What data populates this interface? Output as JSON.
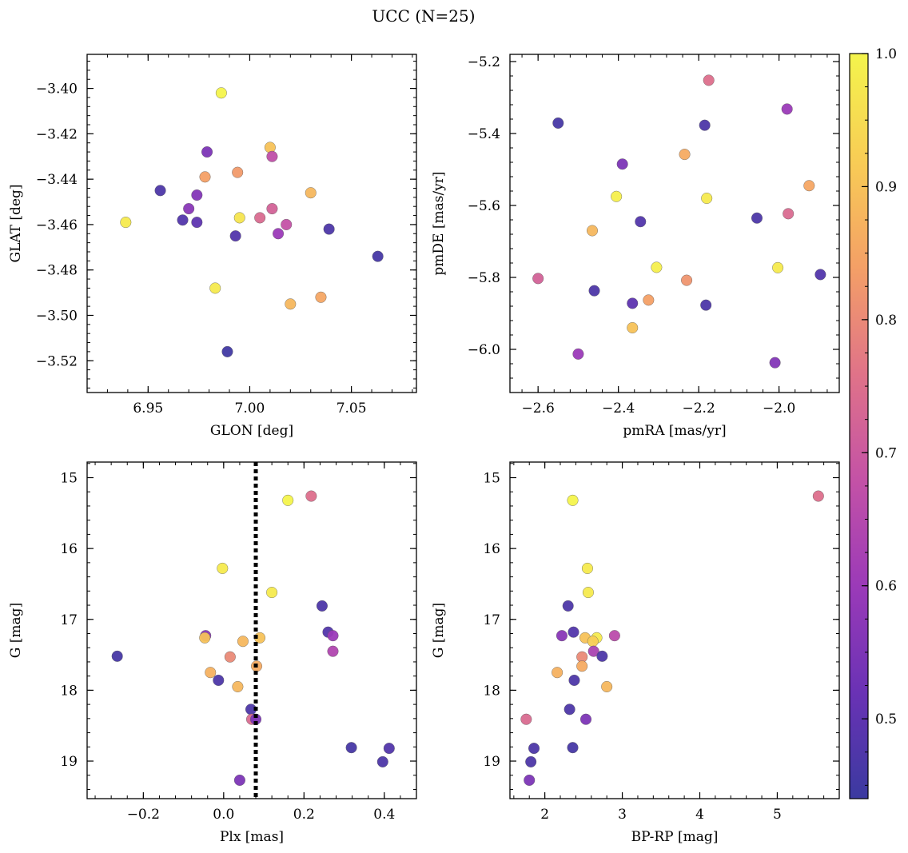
{
  "figure": {
    "suptitle": "UCC (N=25)"
  },
  "colorbar": {
    "range": [
      0.44,
      1.0
    ],
    "ticks": [
      0.5,
      0.6,
      0.7,
      0.8,
      0.9,
      1.0
    ],
    "tick_labels": [
      "0.5",
      "0.6",
      "0.7",
      "0.8",
      "0.9",
      "1.0"
    ],
    "colormap": "plasma",
    "stops": [
      "#3b3aa0",
      "#6a32b5",
      "#9b3ab8",
      "#c452a6",
      "#e07388",
      "#f4a066",
      "#f8cd55",
      "#f4f44c"
    ]
  },
  "chart_data": [
    {
      "type": "scatter",
      "xlabel": "GLON [deg]",
      "ylabel": "GLAT [deg]",
      "xlim": [
        6.92,
        7.082
      ],
      "ylim": [
        -3.534,
        -3.385
      ],
      "y_inverted": false,
      "xticks": [
        6.95,
        7.0,
        7.05
      ],
      "xtick_labels": [
        "6.95",
        "7.00",
        "7.05"
      ],
      "yticks": [
        -3.4,
        -3.42,
        -3.44,
        -3.46,
        -3.48,
        -3.5,
        -3.52
      ],
      "ytick_labels": [
        "−3.40",
        "−3.42",
        "−3.44",
        "−3.46",
        "−3.48",
        "−3.50",
        "−3.52"
      ],
      "vline": null,
      "points": [
        {
          "x": 6.986,
          "y": -3.402,
          "c": 1.0
        },
        {
          "x": 6.979,
          "y": -3.428,
          "c": 0.55
        },
        {
          "x": 7.01,
          "y": -3.426,
          "c": 0.9
        },
        {
          "x": 7.011,
          "y": -3.43,
          "c": 0.67
        },
        {
          "x": 6.956,
          "y": -3.445,
          "c": 0.47
        },
        {
          "x": 6.978,
          "y": -3.439,
          "c": 0.84
        },
        {
          "x": 6.994,
          "y": -3.437,
          "c": 0.83
        },
        {
          "x": 6.974,
          "y": -3.447,
          "c": 0.56
        },
        {
          "x": 6.97,
          "y": -3.453,
          "c": 0.57
        },
        {
          "x": 6.967,
          "y": -3.458,
          "c": 0.48
        },
        {
          "x": 6.974,
          "y": -3.459,
          "c": 0.5
        },
        {
          "x": 6.939,
          "y": -3.459,
          "c": 0.98
        },
        {
          "x": 6.995,
          "y": -3.457,
          "c": 0.97
        },
        {
          "x": 7.005,
          "y": -3.457,
          "c": 0.74
        },
        {
          "x": 7.011,
          "y": -3.453,
          "c": 0.72
        },
        {
          "x": 7.03,
          "y": -3.446,
          "c": 0.88
        },
        {
          "x": 7.018,
          "y": -3.46,
          "c": 0.68
        },
        {
          "x": 6.993,
          "y": -3.465,
          "c": 0.48
        },
        {
          "x": 7.014,
          "y": -3.464,
          "c": 0.6
        },
        {
          "x": 7.039,
          "y": -3.462,
          "c": 0.47
        },
        {
          "x": 7.063,
          "y": -3.474,
          "c": 0.46
        },
        {
          "x": 6.983,
          "y": -3.488,
          "c": 0.98
        },
        {
          "x": 7.02,
          "y": -3.495,
          "c": 0.88
        },
        {
          "x": 7.035,
          "y": -3.492,
          "c": 0.85
        },
        {
          "x": 6.989,
          "y": -3.516,
          "c": 0.45
        }
      ]
    },
    {
      "type": "scatter",
      "xlabel": "pmRA [mas/yr]",
      "ylabel": "pmDE [mas/yr]",
      "xlim": [
        -2.67,
        -1.85
      ],
      "ylim": [
        -6.12,
        -5.18
      ],
      "y_inverted": false,
      "xticks": [
        -2.6,
        -2.4,
        -2.2,
        -2.0
      ],
      "xtick_labels": [
        "−2.6",
        "−2.4",
        "−2.2",
        "−2.0"
      ],
      "yticks": [
        -5.2,
        -5.4,
        -5.6,
        -5.8,
        -6.0
      ],
      "ytick_labels": [
        "−5.2",
        "−5.4",
        "−5.6",
        "−5.8",
        "−6.0"
      ],
      "vline": null,
      "points": [
        {
          "x": -2.175,
          "y": -5.252,
          "c": 0.75
        },
        {
          "x": -2.55,
          "y": -5.371,
          "c": 0.46
        },
        {
          "x": -2.185,
          "y": -5.377,
          "c": 0.47
        },
        {
          "x": -1.98,
          "y": -5.332,
          "c": 0.6
        },
        {
          "x": -2.39,
          "y": -5.485,
          "c": 0.55
        },
        {
          "x": -2.235,
          "y": -5.458,
          "c": 0.86
        },
        {
          "x": -1.925,
          "y": -5.545,
          "c": 0.85
        },
        {
          "x": -2.405,
          "y": -5.575,
          "c": 0.99
        },
        {
          "x": -2.18,
          "y": -5.58,
          "c": 0.98
        },
        {
          "x": -2.345,
          "y": -5.645,
          "c": 0.48
        },
        {
          "x": -2.055,
          "y": -5.635,
          "c": 0.47
        },
        {
          "x": -1.977,
          "y": -5.623,
          "c": 0.74
        },
        {
          "x": -2.465,
          "y": -5.67,
          "c": 0.88
        },
        {
          "x": -2.305,
          "y": -5.772,
          "c": 0.99
        },
        {
          "x": -2.003,
          "y": -5.773,
          "c": 0.98
        },
        {
          "x": -1.897,
          "y": -5.792,
          "c": 0.48
        },
        {
          "x": -2.6,
          "y": -5.803,
          "c": 0.72
        },
        {
          "x": -2.23,
          "y": -5.808,
          "c": 0.82
        },
        {
          "x": -2.46,
          "y": -5.837,
          "c": 0.47
        },
        {
          "x": -2.365,
          "y": -5.872,
          "c": 0.5
        },
        {
          "x": -2.325,
          "y": -5.863,
          "c": 0.84
        },
        {
          "x": -2.182,
          "y": -5.877,
          "c": 0.47
        },
        {
          "x": -2.365,
          "y": -5.94,
          "c": 0.9
        },
        {
          "x": -2.5,
          "y": -6.013,
          "c": 0.6
        },
        {
          "x": -2.01,
          "y": -6.037,
          "c": 0.56
        }
      ]
    },
    {
      "type": "scatter",
      "xlabel": "Plx [mas]",
      "ylabel": "G [mag]",
      "xlim": [
        -0.34,
        0.48
      ],
      "ylim": [
        14.78,
        19.53
      ],
      "y_inverted": true,
      "xticks": [
        -0.2,
        0.0,
        0.2,
        0.4
      ],
      "xtick_labels": [
        "−0.2",
        "0.0",
        "0.2",
        "0.4"
      ],
      "yticks": [
        15,
        16,
        17,
        18,
        19
      ],
      "ytick_labels": [
        "15",
        "16",
        "17",
        "18",
        "19"
      ],
      "vline": {
        "x": 0.08,
        "style": "dotted"
      },
      "points": [
        {
          "x": 0.218,
          "y": 15.26,
          "c": 0.75
        },
        {
          "x": 0.16,
          "y": 15.32,
          "c": 1.0
        },
        {
          "x": -0.003,
          "y": 16.28,
          "c": 0.98
        },
        {
          "x": 0.12,
          "y": 16.62,
          "c": 0.98
        },
        {
          "x": 0.245,
          "y": 16.81,
          "c": 0.47
        },
        {
          "x": -0.045,
          "y": 17.23,
          "c": 0.57
        },
        {
          "x": -0.047,
          "y": 17.26,
          "c": 0.9
        },
        {
          "x": 0.26,
          "y": 17.18,
          "c": 0.48
        },
        {
          "x": 0.272,
          "y": 17.23,
          "c": 0.6
        },
        {
          "x": 0.048,
          "y": 17.31,
          "c": 0.88
        },
        {
          "x": 0.09,
          "y": 17.26,
          "c": 0.9
        },
        {
          "x": 0.272,
          "y": 17.45,
          "c": 0.64
        },
        {
          "x": -0.265,
          "y": 17.52,
          "c": 0.46
        },
        {
          "x": 0.016,
          "y": 17.53,
          "c": 0.8
        },
        {
          "x": 0.082,
          "y": 17.66,
          "c": 0.86
        },
        {
          "x": -0.033,
          "y": 17.75,
          "c": 0.87
        },
        {
          "x": -0.013,
          "y": 17.86,
          "c": 0.47
        },
        {
          "x": 0.035,
          "y": 17.95,
          "c": 0.88
        },
        {
          "x": 0.068,
          "y": 18.27,
          "c": 0.47
        },
        {
          "x": 0.07,
          "y": 18.41,
          "c": 0.74
        },
        {
          "x": 0.08,
          "y": 18.41,
          "c": 0.55
        },
        {
          "x": 0.318,
          "y": 18.81,
          "c": 0.46
        },
        {
          "x": 0.412,
          "y": 18.82,
          "c": 0.48
        },
        {
          "x": 0.396,
          "y": 19.01,
          "c": 0.47
        },
        {
          "x": 0.04,
          "y": 19.27,
          "c": 0.55
        }
      ]
    },
    {
      "type": "scatter",
      "xlabel": "BP-RP [mag]",
      "ylabel": "G [mag]",
      "xlim": [
        1.55,
        5.8
      ],
      "ylim": [
        14.78,
        19.53
      ],
      "y_inverted": true,
      "xticks": [
        2,
        3,
        4,
        5
      ],
      "xtick_labels": [
        "2",
        "3",
        "4",
        "5"
      ],
      "yticks": [
        15,
        16,
        17,
        18,
        19
      ],
      "ytick_labels": [
        "15",
        "16",
        "17",
        "18",
        "19"
      ],
      "vline": null,
      "points": [
        {
          "x": 5.53,
          "y": 15.26,
          "c": 0.75
        },
        {
          "x": 2.36,
          "y": 15.32,
          "c": 1.0
        },
        {
          "x": 2.55,
          "y": 16.28,
          "c": 0.98
        },
        {
          "x": 2.56,
          "y": 16.62,
          "c": 0.98
        },
        {
          "x": 2.3,
          "y": 16.81,
          "c": 0.47
        },
        {
          "x": 2.22,
          "y": 17.23,
          "c": 0.57
        },
        {
          "x": 2.37,
          "y": 17.18,
          "c": 0.48
        },
        {
          "x": 2.52,
          "y": 17.26,
          "c": 0.9
        },
        {
          "x": 2.67,
          "y": 17.26,
          "c": 0.98
        },
        {
          "x": 2.9,
          "y": 17.23,
          "c": 0.66
        },
        {
          "x": 2.62,
          "y": 17.31,
          "c": 0.92
        },
        {
          "x": 2.63,
          "y": 17.45,
          "c": 0.63
        },
        {
          "x": 2.48,
          "y": 17.53,
          "c": 0.8
        },
        {
          "x": 2.74,
          "y": 17.52,
          "c": 0.47
        },
        {
          "x": 2.48,
          "y": 17.66,
          "c": 0.86
        },
        {
          "x": 2.16,
          "y": 17.75,
          "c": 0.87
        },
        {
          "x": 2.38,
          "y": 17.86,
          "c": 0.47
        },
        {
          "x": 2.8,
          "y": 17.95,
          "c": 0.88
        },
        {
          "x": 2.32,
          "y": 18.27,
          "c": 0.47
        },
        {
          "x": 2.53,
          "y": 18.41,
          "c": 0.55
        },
        {
          "x": 1.76,
          "y": 18.41,
          "c": 0.74
        },
        {
          "x": 1.86,
          "y": 18.82,
          "c": 0.47
        },
        {
          "x": 2.36,
          "y": 18.81,
          "c": 0.46
        },
        {
          "x": 1.82,
          "y": 19.01,
          "c": 0.47
        },
        {
          "x": 1.8,
          "y": 19.27,
          "c": 0.55
        }
      ]
    }
  ]
}
